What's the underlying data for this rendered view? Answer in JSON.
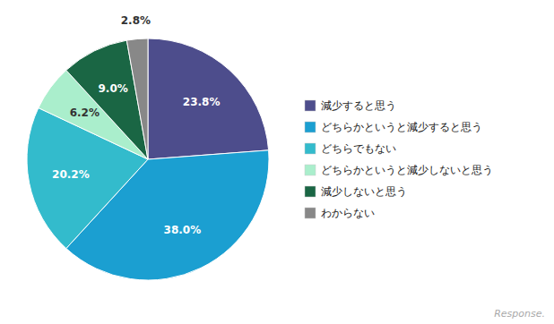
{
  "chart_data": {
    "type": "pie",
    "categories": [
      "減少すると思う",
      "どちらかというと減少すると思う",
      "どちらでもない",
      "どちらかというと減少しないと思う",
      "減少しないと思う",
      "わからない"
    ],
    "values": [
      23.8,
      38.0,
      20.2,
      6.2,
      9.0,
      2.8
    ],
    "value_labels": [
      "23.8%",
      "38.0%",
      "20.2%",
      "6.2%",
      "9.0%",
      "2.8%"
    ],
    "colors": [
      "#4d4d8c",
      "#1b9fd1",
      "#33bbcc",
      "#aaeecc",
      "#1a6644",
      "#888888"
    ],
    "data_labels": true,
    "legend": "right",
    "annotations": [
      "Response."
    ]
  }
}
